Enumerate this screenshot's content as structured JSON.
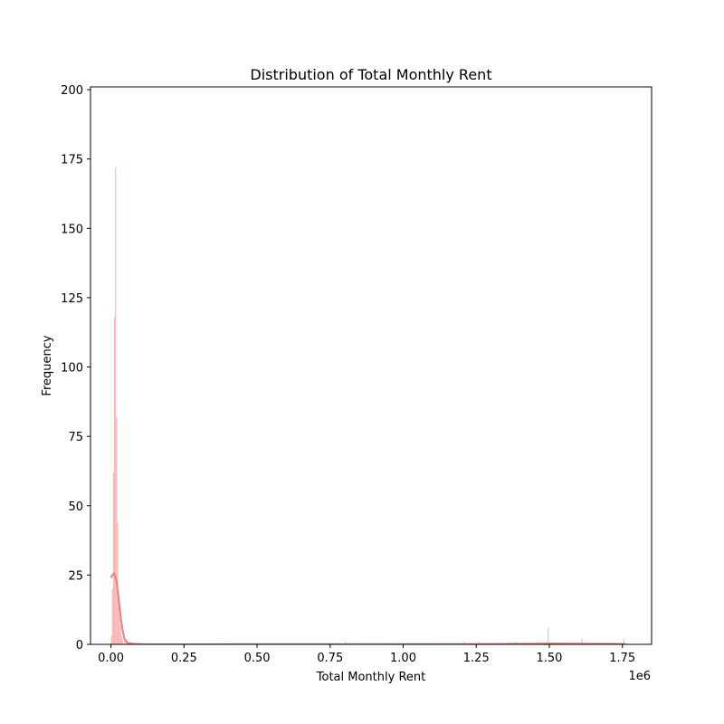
{
  "chart_data": {
    "type": "bar",
    "title": "Distribution of Total Monthly Rent",
    "xlabel": "Total Monthly Rent",
    "ylabel": "Frequency",
    "x_offset_text": "1e6",
    "xlim": [
      -70000,
      1850000
    ],
    "ylim": [
      0,
      201
    ],
    "x_ticks": [
      0,
      250000,
      500000,
      750000,
      1000000,
      1250000,
      1500000,
      1750000
    ],
    "x_tick_labels": [
      "0.00",
      "0.25",
      "0.50",
      "0.75",
      "1.00",
      "1.25",
      "1.50",
      "1.75"
    ],
    "y_ticks": [
      0,
      25,
      50,
      75,
      100,
      125,
      150,
      175,
      200
    ],
    "y_tick_labels": [
      "0",
      "25",
      "50",
      "75",
      "100",
      "125",
      "150",
      "175",
      "200"
    ],
    "grid": false,
    "series": [
      {
        "kind": "histogram",
        "color": "#f4a6a6",
        "bin_width": 3500,
        "bins": [
          {
            "x": 0,
            "count": 3
          },
          {
            "x": 3500,
            "count": 20
          },
          {
            "x": 7000,
            "count": 62
          },
          {
            "x": 10500,
            "count": 118
          },
          {
            "x": 14000,
            "count": 172
          },
          {
            "x": 17500,
            "count": 82
          },
          {
            "x": 21000,
            "count": 44
          },
          {
            "x": 24500,
            "count": 14
          },
          {
            "x": 28000,
            "count": 10
          },
          {
            "x": 31500,
            "count": 7
          },
          {
            "x": 35000,
            "count": 3
          },
          {
            "x": 38500,
            "count": 2
          },
          {
            "x": 45500,
            "count": 1
          },
          {
            "x": 52500,
            "count": 2
          },
          {
            "x": 801500,
            "count": 1
          },
          {
            "x": 1207500,
            "count": 1
          },
          {
            "x": 1256500,
            "count": 1
          },
          {
            "x": 1382500,
            "count": 1
          },
          {
            "x": 1494500,
            "count": 6
          },
          {
            "x": 1610000,
            "count": 2
          },
          {
            "x": 1753500,
            "count": 2
          }
        ]
      },
      {
        "kind": "kde",
        "color": "#e88080",
        "points": [
          [
            0,
            24
          ],
          [
            5000,
            25
          ],
          [
            10000,
            25.5
          ],
          [
            15000,
            24.5
          ],
          [
            20000,
            22
          ],
          [
            25000,
            18
          ],
          [
            30000,
            13
          ],
          [
            35000,
            8.5
          ],
          [
            40000,
            5
          ],
          [
            45000,
            2.5
          ],
          [
            50000,
            1.2
          ],
          [
            60000,
            0.4
          ],
          [
            80000,
            0.15
          ],
          [
            120000,
            0.05
          ],
          [
            300000,
            0.02
          ],
          [
            800000,
            0.05
          ],
          [
            1250000,
            0.1
          ],
          [
            1500000,
            0.3
          ],
          [
            1620000,
            0.2
          ],
          [
            1760000,
            0.15
          ]
        ]
      }
    ]
  }
}
